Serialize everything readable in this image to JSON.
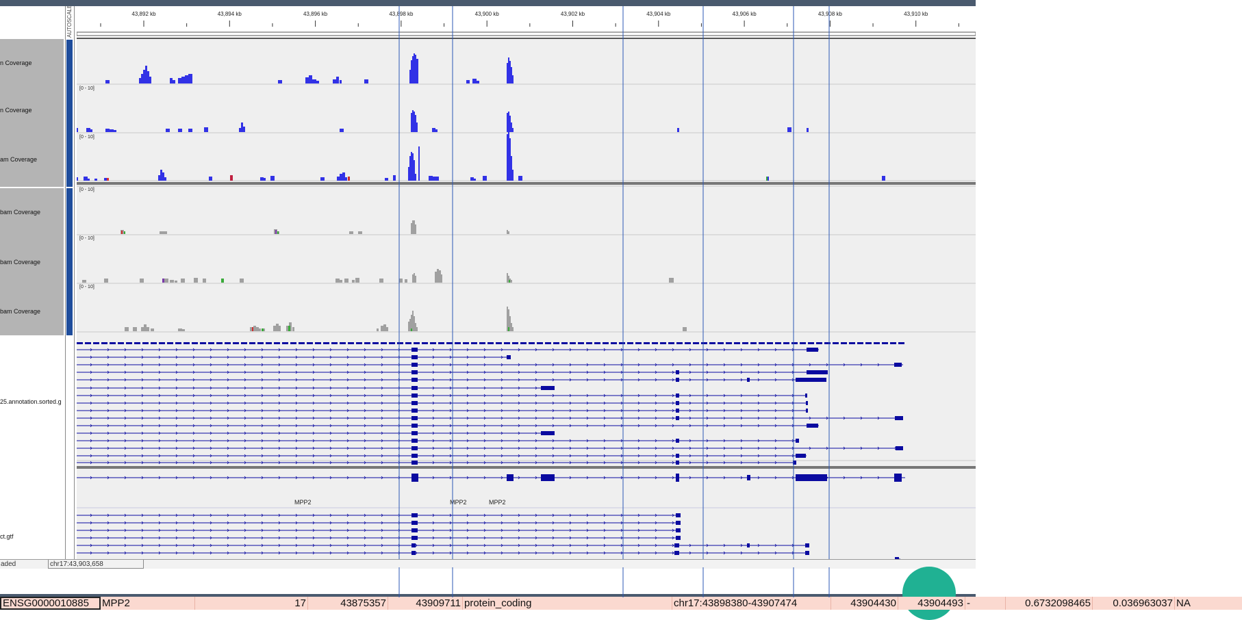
{
  "ruler": {
    "ticks": [
      "43,892 kb",
      "43,894 kb",
      "43,896 kb",
      "43,898 kb",
      "43,900 kb",
      "43,902 kb",
      "43,904 kb",
      "43,906 kb",
      "43,908 kb",
      "43,910 kb"
    ]
  },
  "attribute_header": "AUTOSCALE",
  "tracks": {
    "names": [
      "n Coverage",
      "n Coverage",
      "am Coverage",
      "bam Coverage",
      "bam Coverage",
      "bam Coverage",
      "25.annotation.sorted.g",
      "ct.gtf"
    ],
    "ranges": [
      "[0 - 10]",
      "[0 - 10]",
      "[0 - 10]",
      "[0 - 10]",
      "[0 - 10]"
    ],
    "gene_labels": [
      "MPP2",
      "MPP2",
      "MPP2"
    ]
  },
  "status": {
    "left": "aded",
    "locus": "chr17:43,903,658"
  },
  "table_row": {
    "gene_id": "ENSG0000010885",
    "gene_name": "MPP2",
    "chrom": "17",
    "start": "43875357",
    "end": "43909711",
    "biotype": "protein_coding",
    "region": "chr17:43898380-43907474",
    "peak_start": "43904430",
    "peak_end": "43904493",
    "strand": "-",
    "score": "0.6732098465",
    "pvalue": "0.036963037",
    "flag": "NA"
  },
  "colors": {
    "coverage_blue": "#3232e6",
    "coverage_gray": "#a0a0a0",
    "feature_navy": "#0a0aa0",
    "guide_line": "#2b57b4",
    "table_bg": "#fbd9d0",
    "teal_marker": "#20b193"
  }
}
